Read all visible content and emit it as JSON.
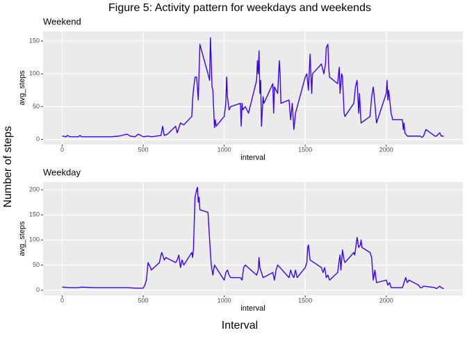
{
  "figure": {
    "title": "Figure 5: Activity pattern for weekdays and weekends",
    "xlabel": "Interval",
    "ylabel": "Number of steps"
  },
  "chart_data": [
    {
      "type": "line",
      "title": "Weekend",
      "xlabel": "interval",
      "ylabel": "avg_steps",
      "color": "#3a00f5",
      "grid": true,
      "xlim": [
        -117.75,
        2472.75
      ],
      "xticks": [
        0,
        500,
        1000,
        1500,
        2000
      ],
      "ylim": [
        -7.85,
        164.85
      ],
      "yticks": [
        0,
        50,
        100,
        150
      ],
      "x": [
        0,
        25,
        30,
        50,
        100,
        110,
        120,
        300,
        350,
        400,
        420,
        450,
        470,
        500,
        530,
        550,
        610,
        620,
        630,
        650,
        700,
        710,
        730,
        750,
        800,
        805,
        810,
        820,
        830,
        840,
        850,
        855,
        900,
        910,
        915,
        925,
        930,
        940,
        945,
        950,
        1000,
        1010,
        1015,
        1020,
        1030,
        1040,
        1100,
        1105,
        1110,
        1115,
        1130,
        1150,
        1200,
        1205,
        1210,
        1215,
        1220,
        1225,
        1230,
        1240,
        1245,
        1300,
        1305,
        1310,
        1330,
        1340,
        1345,
        1350,
        1400,
        1410,
        1420,
        1430,
        1440,
        1500,
        1510,
        1520,
        1530,
        1540,
        1545,
        1600,
        1615,
        1625,
        1630,
        1640,
        1645,
        1650,
        1700,
        1710,
        1715,
        1725,
        1730,
        1740,
        1745,
        1800,
        1810,
        1820,
        1830,
        1835,
        1840,
        1845,
        1900,
        1910,
        1920,
        1930,
        1940,
        2000,
        2005,
        2010,
        2015,
        2030,
        2040,
        2045,
        2100,
        2105,
        2110,
        2115,
        2130,
        2200,
        2210,
        2220,
        2230,
        2245,
        2300,
        2310,
        2330,
        2340,
        2355
      ],
      "values": [
        5,
        4,
        6,
        4,
        4,
        6,
        4,
        4,
        5,
        8,
        5,
        4,
        8,
        4,
        5,
        4,
        6,
        20,
        6,
        8,
        20,
        10,
        25,
        22,
        35,
        60,
        75,
        95,
        95,
        60,
        145,
        140,
        100,
        90,
        155,
        80,
        75,
        18,
        30,
        20,
        35,
        55,
        95,
        65,
        45,
        50,
        55,
        20,
        55,
        45,
        50,
        40,
        90,
        120,
        100,
        135,
        70,
        90,
        20,
        65,
        55,
        85,
        40,
        80,
        70,
        120,
        100,
        55,
        60,
        30,
        55,
        15,
        40,
        95,
        100,
        75,
        130,
        70,
        100,
        115,
        100,
        115,
        140,
        145,
        110,
        95,
        85,
        110,
        70,
        100,
        95,
        40,
        35,
        55,
        80,
        90,
        40,
        70,
        45,
        25,
        35,
        65,
        80,
        55,
        25,
        70,
        90,
        60,
        75,
        40,
        30,
        30,
        30,
        15,
        25,
        10,
        5,
        5,
        5,
        3,
        5,
        15,
        5,
        5,
        10,
        5,
        5
      ]
    },
    {
      "type": "line",
      "title": "Weekday",
      "xlabel": "interval",
      "ylabel": "avg_steps",
      "color": "#3a00f5",
      "grid": true,
      "xlim": [
        -117.75,
        2472.75
      ],
      "xticks": [
        0,
        500,
        1000,
        1500,
        2000
      ],
      "ylim": [
        -10.25,
        215.25
      ],
      "yticks": [
        0,
        50,
        100,
        150,
        200
      ],
      "x": [
        0,
        50,
        100,
        120,
        200,
        300,
        400,
        450,
        500,
        510,
        520,
        530,
        545,
        550,
        600,
        610,
        615,
        630,
        640,
        700,
        710,
        720,
        730,
        740,
        750,
        800,
        805,
        810,
        820,
        830,
        835,
        840,
        845,
        850,
        900,
        910,
        920,
        930,
        940,
        1000,
        1010,
        1020,
        1030,
        1040,
        1100,
        1110,
        1120,
        1130,
        1200,
        1210,
        1215,
        1220,
        1230,
        1240,
        1300,
        1310,
        1320,
        1330,
        1400,
        1410,
        1420,
        1430,
        1440,
        1450,
        1500,
        1510,
        1515,
        1520,
        1530,
        1600,
        1610,
        1620,
        1630,
        1640,
        1650,
        1700,
        1710,
        1715,
        1720,
        1730,
        1740,
        1745,
        1800,
        1805,
        1810,
        1820,
        1830,
        1840,
        1845,
        1850,
        1900,
        1910,
        1920,
        1930,
        1940,
        2000,
        2010,
        2020,
        2030,
        2100,
        2110,
        2120,
        2130,
        2140,
        2200,
        2210,
        2220,
        2230,
        2300,
        2310,
        2330,
        2340,
        2355
      ],
      "values": [
        6,
        5,
        5,
        6,
        5,
        5,
        5,
        4,
        4,
        10,
        20,
        55,
        45,
        40,
        55,
        70,
        75,
        60,
        65,
        55,
        60,
        70,
        45,
        60,
        50,
        75,
        65,
        80,
        185,
        200,
        205,
        175,
        185,
        160,
        155,
        100,
        50,
        30,
        50,
        20,
        35,
        40,
        30,
        25,
        25,
        20,
        45,
        50,
        30,
        40,
        65,
        45,
        35,
        25,
        35,
        20,
        40,
        50,
        25,
        40,
        30,
        25,
        40,
        25,
        45,
        55,
        85,
        90,
        60,
        45,
        35,
        45,
        25,
        30,
        20,
        35,
        60,
        70,
        40,
        80,
        60,
        55,
        75,
        70,
        80,
        105,
        85,
        90,
        100,
        85,
        75,
        65,
        20,
        40,
        15,
        20,
        10,
        15,
        5,
        5,
        15,
        25,
        15,
        20,
        10,
        5,
        5,
        8,
        5,
        3,
        8,
        5,
        3
      ]
    }
  ]
}
